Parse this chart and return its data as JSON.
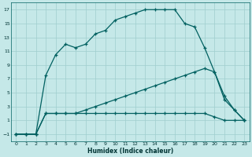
{
  "xlabel": "Humidex (Indice chaleur)",
  "bg_color": "#c5e8e8",
  "grid_color": "#9fcece",
  "line_color": "#006060",
  "xlim": [
    -0.5,
    23.5
  ],
  "ylim": [
    -2.0,
    18.0
  ],
  "xticks": [
    0,
    1,
    2,
    3,
    4,
    5,
    6,
    7,
    8,
    9,
    10,
    11,
    12,
    13,
    14,
    15,
    16,
    17,
    18,
    19,
    20,
    21,
    22,
    23
  ],
  "yticks": [
    -1,
    1,
    3,
    5,
    7,
    9,
    11,
    13,
    15,
    17
  ],
  "line1_x": [
    0,
    1,
    2,
    3,
    4,
    5,
    6,
    7,
    8,
    9,
    10,
    11,
    12,
    13,
    14,
    15,
    16,
    17,
    18,
    19,
    20,
    21,
    22,
    23
  ],
  "line1_y": [
    -1,
    -1,
    -1,
    7.5,
    10.5,
    12,
    11.5,
    12,
    13.5,
    14,
    15.5,
    16,
    16.5,
    17,
    17,
    17,
    17,
    15,
    14.5,
    11.5,
    8,
    4,
    2.5,
    1
  ],
  "line2_x": [
    0,
    1,
    2,
    3,
    4,
    5,
    6,
    7,
    8,
    9,
    10,
    11,
    12,
    13,
    14,
    15,
    16,
    17,
    18,
    19,
    20,
    21,
    22,
    23
  ],
  "line2_y": [
    -1,
    -1,
    -1,
    2,
    2,
    2,
    2,
    2,
    2,
    2,
    2,
    2,
    2,
    2,
    2,
    2,
    2,
    2,
    2,
    2,
    1.5,
    1,
    1,
    1
  ],
  "line3_x": [
    0,
    1,
    2,
    3,
    4,
    5,
    6,
    7,
    8,
    9,
    10,
    11,
    12,
    13,
    14,
    15,
    16,
    17,
    18,
    19,
    20,
    21,
    22,
    23
  ],
  "line3_y": [
    -1,
    -1,
    -1,
    2,
    2,
    2,
    2,
    2.5,
    3,
    3.5,
    4,
    4.5,
    5,
    5.5,
    6,
    6.5,
    7,
    7.5,
    8,
    8.5,
    8,
    4.5,
    2.5,
    1
  ]
}
